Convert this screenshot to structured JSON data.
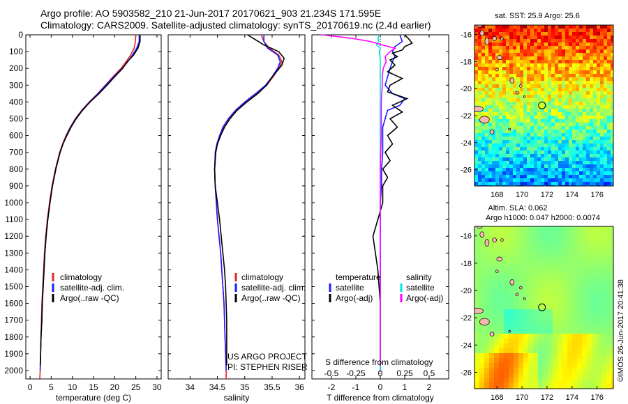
{
  "header": {
    "line1": "Argo profile: AO 5903582_210 21-Jun-2017 20170621_903 21.234S 171.595E",
    "line2": "Climatology: CARS2009. Satellite-adjusted climatology: synTS_20170619.nc (2.4d earlier)"
  },
  "colors": {
    "climatology": "#e8202a",
    "satellite": "#1a1aff",
    "argo": "#000000",
    "sal_sat": "#00e5e5",
    "sal_argo": "#ff00ff"
  },
  "chart_data": [
    {
      "type": "line",
      "panel": "temperature",
      "xlabel": "temperature (deg C)",
      "xlim": [
        -1,
        31
      ],
      "ylim": [
        2050,
        0
      ],
      "xticks": [
        0,
        5,
        10,
        15,
        20,
        25,
        30
      ],
      "yticks": [
        0,
        100,
        200,
        300,
        400,
        500,
        600,
        700,
        800,
        900,
        1000,
        1100,
        1200,
        1300,
        1400,
        1500,
        1600,
        1700,
        1800,
        1900,
        2000
      ],
      "legend": [
        "climatology",
        "satellite-adj. clim.",
        "Argo(..raw -QC)"
      ],
      "series": [
        {
          "name": "climatology",
          "color_key": "climatology",
          "depth": [
            0,
            40,
            80,
            120,
            160,
            200,
            250,
            300,
            350,
            400,
            450,
            500,
            550,
            600,
            650,
            700,
            800,
            900,
            1000,
            1100,
            1200,
            1300,
            1400,
            1500,
            1600,
            1700,
            1800,
            1900,
            2000,
            2050
          ],
          "values": [
            25,
            24.9,
            24.6,
            23.8,
            22.7,
            21.5,
            19.6,
            17.8,
            16,
            14,
            12.2,
            10.7,
            9.5,
            8.5,
            7.7,
            7,
            6,
            5.2,
            4.6,
            4.1,
            3.7,
            3.4,
            3.2,
            3,
            2.8,
            2.7,
            2.6,
            2.5,
            2.4,
            2.3
          ]
        },
        {
          "name": "satellite-adj. clim.",
          "color_key": "satellite",
          "depth": [
            0,
            40,
            80,
            120,
            160,
            200,
            250,
            300,
            350,
            400,
            450,
            500,
            550,
            600,
            650,
            700,
            800,
            900,
            1000,
            1100,
            1200,
            1300,
            1400,
            1500,
            1600,
            1700,
            1800,
            1900,
            2000
          ],
          "values": [
            25.8,
            25.8,
            25.2,
            24.2,
            23.1,
            21.8,
            19.8,
            17.9,
            16.1,
            14.1,
            12.3,
            10.8,
            9.6,
            8.6,
            7.8,
            7.1,
            6.1,
            5.3,
            4.7,
            4.2,
            3.8,
            3.5,
            3.3,
            3.1,
            2.9,
            2.8,
            2.6,
            2.5,
            2.4
          ]
        },
        {
          "name": "Argo(..raw -QC)",
          "color_key": "argo",
          "depth": [
            0,
            40,
            80,
            120,
            160,
            200,
            250,
            300,
            350,
            400,
            450,
            500,
            550,
            600,
            650,
            700,
            800,
            900,
            1000,
            1100,
            1200,
            1300,
            1400,
            1500,
            1600,
            1700,
            1800,
            1900,
            1970
          ],
          "values": [
            26,
            26,
            25.5,
            24.5,
            23,
            21.9,
            20,
            18.2,
            16.3,
            14.2,
            12.4,
            10.9,
            9.7,
            8.7,
            7.8,
            7.1,
            6.1,
            5.3,
            4.7,
            4.2,
            3.8,
            3.5,
            3.3,
            3.1,
            2.9,
            2.8,
            2.6,
            2.5,
            2.4
          ]
        }
      ]
    },
    {
      "type": "line",
      "panel": "salinity",
      "xlabel": "salinity",
      "xlim": [
        33.6,
        36.1
      ],
      "ylim": [
        2050,
        0
      ],
      "xticks": [
        34,
        34.5,
        35,
        35.5,
        36
      ],
      "legend": [
        "climatology",
        "satellite-adj. clim.",
        "Argo(..raw -QC)"
      ],
      "series": [
        {
          "name": "climatology",
          "color_key": "climatology",
          "depth": [
            0,
            40,
            80,
            120,
            160,
            200,
            250,
            300,
            350,
            400,
            450,
            500,
            550,
            600,
            650,
            700,
            800,
            900,
            1000,
            1100,
            1200,
            1300,
            1400,
            1500,
            1600,
            1700,
            1800,
            1900,
            2000,
            2050
          ],
          "values": [
            35.3,
            35.35,
            35.45,
            35.62,
            35.68,
            35.62,
            35.52,
            35.4,
            35.22,
            35.02,
            34.85,
            34.72,
            34.62,
            34.55,
            34.5,
            34.47,
            34.45,
            34.46,
            34.48,
            34.5,
            34.53,
            34.56,
            34.58,
            34.6,
            34.62,
            34.63,
            34.64,
            34.65,
            34.66,
            34.66
          ]
        },
        {
          "name": "satellite-adj. clim.",
          "color_key": "satellite",
          "depth": [
            0,
            40,
            80,
            120,
            160,
            200,
            250,
            300,
            350,
            400,
            450,
            500,
            550,
            600,
            650,
            700,
            800,
            900,
            1000,
            1100,
            1200,
            1300,
            1400,
            1500,
            1600,
            1700,
            1800,
            1900,
            2000
          ],
          "values": [
            35.35,
            35.35,
            35.42,
            35.6,
            35.65,
            35.6,
            35.5,
            35.38,
            35.2,
            35,
            34.83,
            34.7,
            34.6,
            34.54,
            34.49,
            34.46,
            34.45,
            34.46,
            34.48,
            34.5,
            34.53,
            34.56,
            34.58,
            34.6,
            34.62,
            34.63,
            34.64,
            34.65,
            34.66
          ]
        },
        {
          "name": "Argo(..raw -QC)",
          "color_key": "argo",
          "depth": [
            0,
            30,
            60,
            100,
            140,
            180,
            220,
            260,
            300,
            350,
            400,
            450,
            500,
            550,
            600,
            650,
            700,
            800,
            900,
            1000,
            1100,
            1200,
            1300,
            1400,
            1500,
            1600,
            1700,
            1800,
            1900,
            1970
          ],
          "values": [
            35.05,
            35.2,
            35.35,
            35.62,
            35.72,
            35.68,
            35.58,
            35.48,
            35.4,
            35.24,
            35.04,
            34.86,
            34.73,
            34.63,
            34.56,
            34.5,
            34.47,
            34.45,
            34.46,
            34.5,
            34.54,
            34.57,
            34.6,
            34.63,
            34.65,
            34.66,
            34.67,
            34.67,
            34.67,
            34.67
          ]
        }
      ]
    },
    {
      "type": "line",
      "panel": "difference",
      "xlabel": "T difference from climatology",
      "top_label": "S difference from climatology",
      "xlim": [
        -2.8,
        2.8
      ],
      "ylim": [
        2050,
        0
      ],
      "xticks_T": [
        -2,
        -1,
        0,
        1,
        2
      ],
      "xticks_S": [
        -0.5,
        -0.25,
        0,
        0.25,
        0.5
      ],
      "xticks_S_labels": [
        "-0.5",
        "-0.25",
        "0",
        "0.25",
        "0.5"
      ],
      "legend_headers": [
        "temperature",
        "salinity"
      ],
      "legend": [
        "satellite",
        "Argo(-adj)",
        "satellite",
        "Argo(-adj)"
      ],
      "series": [
        {
          "name": "T satellite",
          "color_key": "satellite",
          "depth": [
            0,
            40,
            70,
            100,
            130,
            160,
            200,
            250,
            300,
            350,
            380,
            420,
            450,
            500,
            550,
            600,
            700,
            800,
            900,
            1000,
            1200,
            1500,
            2000
          ],
          "values": [
            0.8,
            0.9,
            0.6,
            0.5,
            0.6,
            0.5,
            0.4,
            0.3,
            0.2,
            0.5,
            1.0,
            0.8,
            0.3,
            0.2,
            0.1,
            0.1,
            0.1,
            0.05,
            0.05,
            0,
            0,
            0,
            0
          ]
        },
        {
          "name": "T Argo(-adj)",
          "color_key": "argo",
          "depth": [
            0,
            30,
            50,
            70,
            90,
            110,
            130,
            150,
            180,
            220,
            260,
            300,
            340,
            380,
            420,
            460,
            500,
            550,
            600,
            650,
            700,
            750,
            800,
            850,
            900,
            1000,
            1100,
            1200,
            1300,
            1400,
            1600,
            1800,
            1970
          ],
          "values": [
            1.0,
            1.2,
            1.3,
            1.0,
            0.9,
            0.5,
            0.7,
            0.4,
            0.6,
            0.3,
            0.9,
            0.4,
            0.3,
            1.1,
            0.5,
            0.9,
            0.4,
            0.7,
            0.3,
            0.5,
            0.2,
            0.4,
            0.1,
            0.3,
            0.1,
            0.1,
            -0.1,
            -0.3,
            -0.2,
            -0.1,
            0,
            0,
            0
          ]
        },
        {
          "name": "S satellite",
          "color_key": "sal_sat",
          "depth": [
            0,
            40,
            60,
            80,
            100,
            150,
            200,
            300,
            400,
            500,
            600,
            800,
            1000,
            1500,
            2000
          ],
          "values": [
            -0.02,
            -0.02,
            -0.04,
            0,
            -0.01,
            0,
            0,
            0,
            0,
            0,
            0,
            0,
            0,
            0,
            0
          ]
        },
        {
          "name": "S Argo(-adj)",
          "color_key": "sal_argo",
          "depth": [
            0,
            20,
            40,
            60,
            80,
            100,
            130,
            160,
            200,
            250,
            300,
            400,
            500,
            600,
            800,
            1000,
            1500,
            1970
          ],
          "values": [
            -0.6,
            -0.3,
            -0.1,
            0.02,
            0.15,
            0.1,
            0.05,
            0.06,
            0.03,
            0.02,
            0.02,
            0.01,
            0.01,
            0.01,
            0,
            0,
            0,
            0
          ]
        }
      ]
    },
    {
      "type": "heatmap",
      "panel": "sst-map",
      "title": "sat. SST: 25.9 Argo: 25.6",
      "xticks": [
        168,
        170,
        172,
        174,
        176
      ],
      "yticks": [
        -16,
        -18,
        -20,
        -22,
        -24,
        -26
      ],
      "xlim": [
        166.2,
        177.3
      ],
      "ylim": [
        -27.2,
        -15.3
      ],
      "argo_position": [
        171.595,
        -21.234
      ]
    },
    {
      "type": "heatmap",
      "panel": "sla-map",
      "title1": "Altim. SLA: 0.062",
      "title2": "Argo h1000: 0.047 h2000: 0.0074",
      "xticks": [
        168,
        170,
        172,
        174,
        176
      ],
      "yticks": [
        -16,
        -18,
        -20,
        -22,
        -24,
        -26
      ],
      "xlim": [
        166.2,
        177.3
      ],
      "ylim": [
        -27.2,
        -15.3
      ],
      "argo_position": [
        171.595,
        -21.234
      ]
    }
  ],
  "credit": {
    "project": "US ARGO PROJECT",
    "pi": "PI: STEPHEN RISER",
    "stamp": "©IMOS 26-Jun-2017 20:41:38"
  }
}
